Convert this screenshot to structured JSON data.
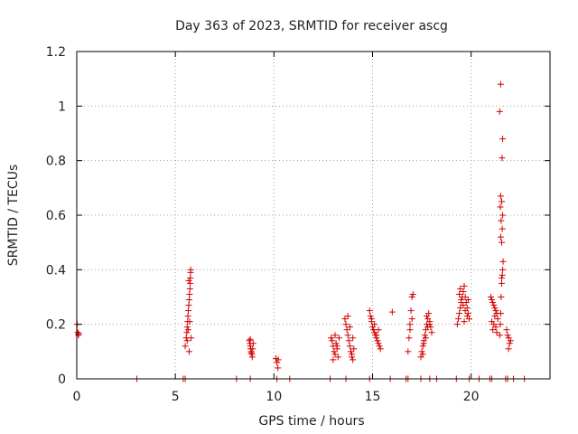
{
  "chart_data": {
    "type": "scatter",
    "title": "Day 363 of 2023, SRMTID for receiver ascg",
    "xlabel": "GPS time / hours",
    "ylabel": "SRMTID / TECUs",
    "xlim": [
      0,
      24
    ],
    "ylim": [
      0,
      1.2
    ],
    "xticks": [
      0,
      5,
      10,
      15,
      20
    ],
    "yticks": [
      0,
      0.2,
      0.4,
      0.6,
      0.8,
      1,
      1.2
    ],
    "ytick_labels": [
      "0",
      "0.2",
      "0.4",
      "0.6",
      "0.8",
      "1",
      "1.2"
    ],
    "grid": true,
    "marker": "+",
    "color": "#d40000",
    "series": [
      {
        "name": "SRMTID",
        "x": [
          0.02,
          0.05,
          0.08,
          0.1,
          5.5,
          5.55,
          5.58,
          5.6,
          5.62,
          5.64,
          5.66,
          5.68,
          5.7,
          5.72,
          5.74,
          5.75,
          5.76,
          5.77,
          5.78,
          5.8,
          5.6,
          5.65,
          5.7,
          5.73,
          5.68,
          8.75,
          8.78,
          8.8,
          8.82,
          8.85,
          8.88,
          8.9,
          8.92,
          8.95,
          8.8,
          8.85,
          10.1,
          10.15,
          10.2,
          10.22,
          12.9,
          12.95,
          13.0,
          13.05,
          13.1,
          13.15,
          13.2,
          13.25,
          13.3,
          13.0,
          13.1,
          13.2,
          13.6,
          13.65,
          13.7,
          13.75,
          13.8,
          13.85,
          13.9,
          13.95,
          14.0,
          14.05,
          13.75,
          13.85,
          13.95,
          14.0,
          14.85,
          14.9,
          14.95,
          15.0,
          15.05,
          15.1,
          15.15,
          15.2,
          15.25,
          15.3,
          15.35,
          15.4,
          14.95,
          15.1,
          15.2,
          15.3,
          16.0,
          16.8,
          16.85,
          16.9,
          16.95,
          17.0,
          17.05,
          16.9,
          17.0,
          17.45,
          17.5,
          17.55,
          17.6,
          17.65,
          17.7,
          17.75,
          17.8,
          17.85,
          17.9,
          17.95,
          18.0,
          17.6,
          17.7,
          17.8,
          17.9,
          17.55,
          17.75,
          19.3,
          19.35,
          19.4,
          19.45,
          19.5,
          19.55,
          19.6,
          19.65,
          19.7,
          19.75,
          19.8,
          19.85,
          19.9,
          19.4,
          19.5,
          19.6,
          19.7,
          19.8,
          19.45,
          19.65,
          19.85,
          21.0,
          21.05,
          21.1,
          21.15,
          21.2,
          21.25,
          21.3,
          21.35,
          21.05,
          21.15,
          21.25,
          21.1,
          21.2,
          21.3,
          21.45,
          21.48,
          21.5,
          21.52,
          21.55,
          21.58,
          21.6,
          21.62,
          21.55,
          21.5,
          21.58,
          21.52,
          21.6,
          21.48,
          21.55,
          21.5,
          21.57,
          21.6,
          21.45,
          21.5,
          21.55,
          21.8,
          21.85,
          21.9,
          21.95,
          22.0,
          21.9,
          3.05,
          5.4,
          5.5,
          8.1,
          8.8,
          10.15,
          10.8,
          12.85,
          13.65,
          14.85,
          15.9,
          16.7,
          16.8,
          17.45,
          17.9,
          18.25,
          19.25,
          19.9,
          20.4,
          20.95,
          21.05,
          21.75,
          21.85,
          22.15,
          22.7
        ],
        "y": [
          0.2,
          0.17,
          0.16,
          0.165,
          0.12,
          0.15,
          0.17,
          0.19,
          0.21,
          0.23,
          0.25,
          0.27,
          0.29,
          0.31,
          0.33,
          0.35,
          0.37,
          0.39,
          0.4,
          0.15,
          0.14,
          0.18,
          0.1,
          0.21,
          0.36,
          0.14,
          0.13,
          0.12,
          0.11,
          0.1,
          0.09,
          0.08,
          0.11,
          0.13,
          0.145,
          0.095,
          0.075,
          0.06,
          0.04,
          0.07,
          0.15,
          0.14,
          0.12,
          0.1,
          0.09,
          0.13,
          0.11,
          0.08,
          0.15,
          0.07,
          0.16,
          0.12,
          0.22,
          0.2,
          0.18,
          0.16,
          0.14,
          0.12,
          0.1,
          0.08,
          0.07,
          0.11,
          0.23,
          0.19,
          0.09,
          0.15,
          0.25,
          0.23,
          0.21,
          0.19,
          0.18,
          0.17,
          0.16,
          0.15,
          0.14,
          0.13,
          0.12,
          0.11,
          0.22,
          0.2,
          0.16,
          0.18,
          0.245,
          0.1,
          0.15,
          0.2,
          0.25,
          0.3,
          0.31,
          0.18,
          0.22,
          0.08,
          0.1,
          0.12,
          0.14,
          0.16,
          0.18,
          0.2,
          0.22,
          0.24,
          0.21,
          0.19,
          0.17,
          0.13,
          0.15,
          0.19,
          0.2,
          0.09,
          0.23,
          0.2,
          0.22,
          0.24,
          0.26,
          0.28,
          0.3,
          0.32,
          0.34,
          0.3,
          0.28,
          0.26,
          0.24,
          0.22,
          0.31,
          0.29,
          0.27,
          0.25,
          0.23,
          0.33,
          0.21,
          0.29,
          0.3,
          0.29,
          0.28,
          0.27,
          0.26,
          0.25,
          0.24,
          0.22,
          0.21,
          0.2,
          0.19,
          0.18,
          0.23,
          0.17,
          0.16,
          0.2,
          0.24,
          0.3,
          0.35,
          0.38,
          0.4,
          0.43,
          0.5,
          0.52,
          0.55,
          0.58,
          0.6,
          0.63,
          0.65,
          0.67,
          0.81,
          0.88,
          0.98,
          1.08,
          0.37,
          0.18,
          0.16,
          0.15,
          0.13,
          0.14,
          0.11,
          0,
          0,
          0,
          0,
          0,
          0,
          0,
          0,
          0,
          0,
          0,
          0,
          0,
          0,
          0,
          0,
          0,
          0,
          0,
          0,
          0,
          0,
          0,
          0,
          0
        ]
      }
    ]
  }
}
